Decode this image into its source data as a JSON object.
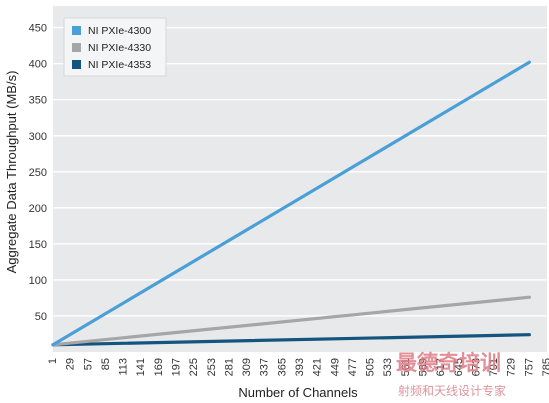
{
  "chart_data": {
    "type": "line",
    "xlabel": "Number of Channels",
    "ylabel": "Aggregate Data Throughput (MB/s)",
    "x_ticks": [
      1,
      29,
      57,
      85,
      113,
      141,
      169,
      197,
      225,
      253,
      281,
      309,
      337,
      365,
      393,
      421,
      449,
      477,
      505,
      533,
      561,
      589,
      617,
      645,
      673,
      701,
      729,
      757,
      785
    ],
    "y_ticks": [
      50,
      100,
      150,
      200,
      250,
      300,
      350,
      400,
      450
    ],
    "xlim": [
      1,
      785
    ],
    "ylim": [
      0,
      480
    ],
    "grid": true,
    "legend_position": "top-left",
    "series": [
      {
        "name": "NI PXIe-4300",
        "color": "#4a9fd6",
        "x": [
          1,
          757
        ],
        "values": [
          10,
          402
        ]
      },
      {
        "name": "NI PXIe-4330",
        "color": "#a6a6a8",
        "x": [
          1,
          757
        ],
        "values": [
          10,
          76
        ]
      },
      {
        "name": "NI PXIe-4353",
        "color": "#14557f",
        "x": [
          1,
          757
        ],
        "values": [
          10,
          24
        ]
      }
    ]
  },
  "colors": {
    "plot_background": "#e8e9eb",
    "gridline": "#ffffff"
  },
  "watermark": {
    "main": "最德奇培训",
    "sub": "射频和天线设计专家"
  }
}
